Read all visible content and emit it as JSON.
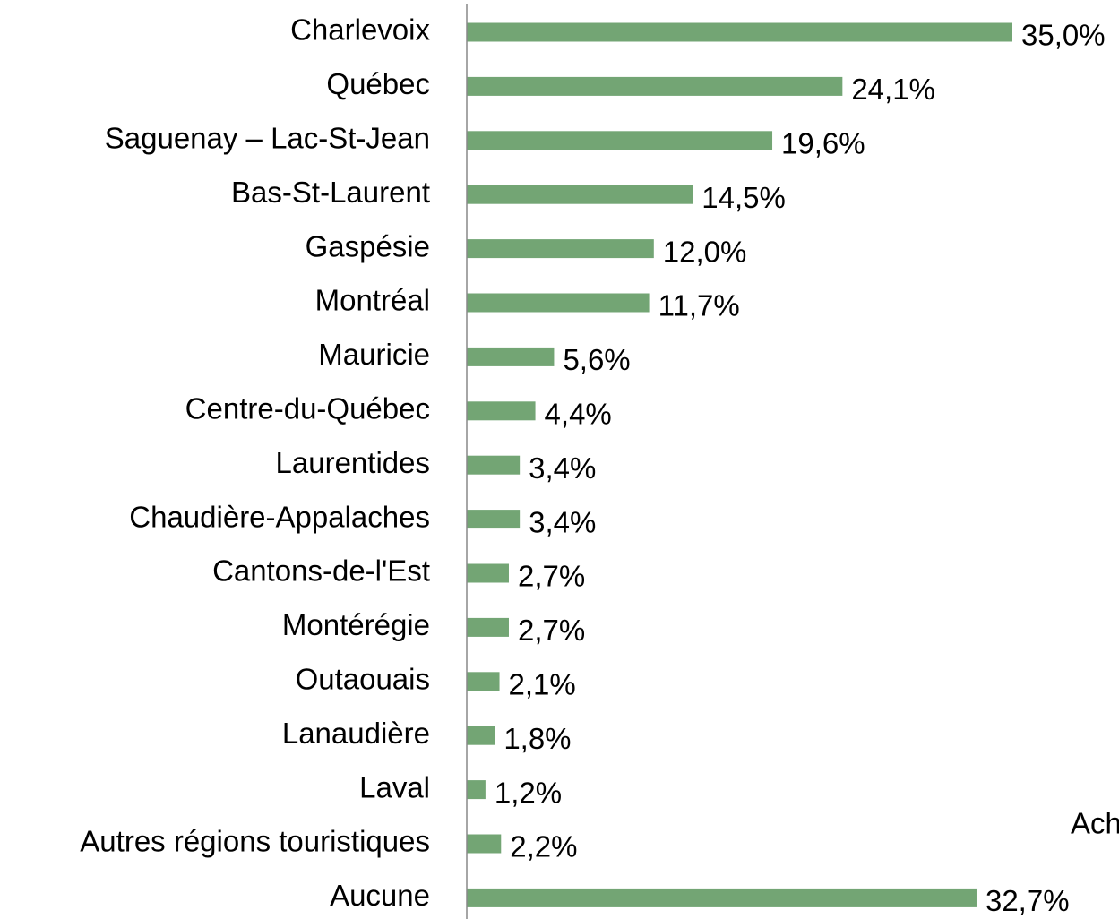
{
  "chart_data": {
    "type": "bar",
    "orientation": "horizontal",
    "categories": [
      "Charlevoix",
      "Québec",
      "Saguenay – Lac-St-Jean",
      "Bas-St-Laurent",
      "Gaspésie",
      "Montréal",
      "Mauricie",
      "Centre-du-Québec",
      "Laurentides",
      "Chaudière-Appalaches",
      "Cantons-de-l'Est",
      "Montérégie",
      "Outaouais",
      "Lanaudière",
      "Laval",
      "Autres régions touristiques",
      "Aucune"
    ],
    "values": [
      35.0,
      24.1,
      19.6,
      14.5,
      12.0,
      11.7,
      5.6,
      4.4,
      3.4,
      3.4,
      2.7,
      2.7,
      2.1,
      1.8,
      1.2,
      2.2,
      32.7
    ],
    "value_labels": [
      "35,0%",
      "24,1%",
      "19,6%",
      "14,5%",
      "12,0%",
      "11,7%",
      "5,6%",
      "4,4%",
      "3,4%",
      "3,4%",
      "2,7%",
      "2,7%",
      "2,1%",
      "1,8%",
      "1,2%",
      "2,2%",
      "32,7%"
    ],
    "color": "#73a574",
    "xlim": [
      0,
      35
    ],
    "annotation": "Ach"
  }
}
